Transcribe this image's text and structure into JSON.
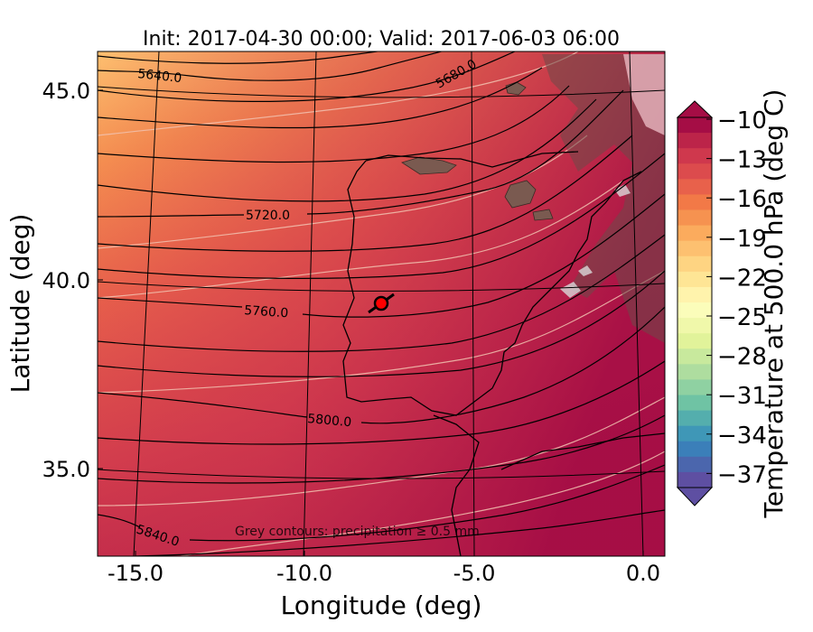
{
  "title": "Init: 2017-04-30 00:00; Valid: 2017-06-03 06:00",
  "xlabel": "Longitude (deg)",
  "ylabel": "Latitude (deg)",
  "x_ticks": [
    "-15.0",
    "-10.0",
    "-5.0",
    "0.0"
  ],
  "y_ticks": [
    "45.0",
    "40.0",
    "35.0"
  ],
  "colorbar": {
    "label": "Temperature at 500.0 hPa (deg C)",
    "ticks": [
      "−10",
      "−13",
      "−16",
      "−19",
      "−22",
      "−25",
      "−28",
      "−31",
      "−34",
      "−37"
    ],
    "colors": [
      "#a50d45",
      "#bc2449",
      "#cf384d",
      "#dc4b4d",
      "#e8614b",
      "#f27947",
      "#f69250",
      "#fbab5d",
      "#fdc070",
      "#fed482",
      "#fee595",
      "#fff3ac",
      "#fbfdba",
      "#f0f8aa",
      "#e1f39a",
      "#c8e99d",
      "#aedd9f",
      "#8fd1a2",
      "#6fc3a4",
      "#54aead",
      "#3f97b7",
      "#3b7fb9",
      "#4b66ad",
      "#5e4fa2"
    ]
  },
  "contours": [
    {
      "label": "5640.0"
    },
    {
      "label": "5680.0"
    },
    {
      "label": "5720.0"
    },
    {
      "label": "5760.0"
    },
    {
      "label": "5800.0"
    },
    {
      "label": "5840.0"
    }
  ],
  "note": "Grey contours: precipitation ≥ 0.5 mm",
  "map": {
    "extent": {
      "lon": [
        -16,
        0.2
      ],
      "lat": [
        32.5,
        46
      ]
    },
    "marker": {
      "lat": 39.4,
      "lon": -7.6,
      "color": "#ff0000"
    }
  }
}
